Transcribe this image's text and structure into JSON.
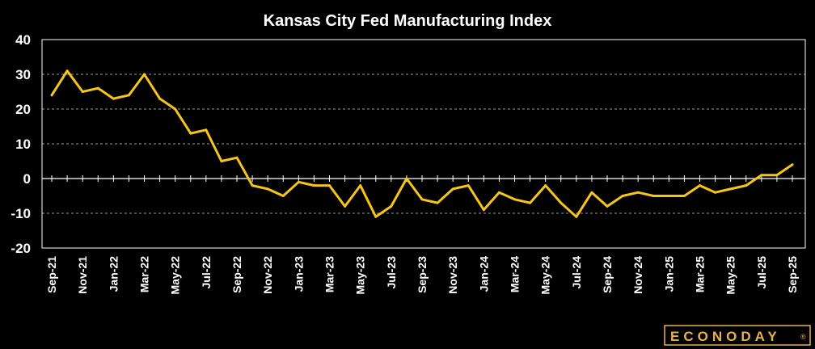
{
  "chart_data": {
    "type": "line",
    "title": "Kansas City Fed Manufacturing Index",
    "xlabel": "",
    "ylabel": "",
    "ylim": [
      -20,
      40
    ],
    "yticks": [
      40,
      30,
      20,
      10,
      0,
      -10,
      -20
    ],
    "grid": true,
    "legend": "none",
    "x": [
      "Sep-21",
      "Oct-21",
      "Nov-21",
      "Dec-21",
      "Jan-22",
      "Feb-22",
      "Mar-22",
      "Apr-22",
      "May-22",
      "Jun-22",
      "Jul-22",
      "Aug-22",
      "Sep-22",
      "Oct-22",
      "Nov-22",
      "Dec-22",
      "Jan-23",
      "Feb-23",
      "Mar-23",
      "Apr-23",
      "May-23",
      "Jun-23",
      "Jul-23",
      "Aug-23",
      "Sep-23",
      "Oct-23",
      "Nov-23",
      "Dec-23",
      "Jan-24",
      "Feb-24",
      "Mar-24",
      "Apr-24",
      "May-24",
      "Jun-24",
      "Jul-24",
      "Aug-24",
      "Sep-24",
      "Oct-24",
      "Nov-24",
      "Dec-24",
      "Jan-25",
      "Feb-25",
      "Mar-25",
      "Apr-25",
      "May-25",
      "Jun-25",
      "Jul-25",
      "Aug-25",
      "Sep-25"
    ],
    "x_tick_labels": [
      "Sep-21",
      "Nov-21",
      "Jan-22",
      "Mar-22",
      "May-22",
      "Jul-22",
      "Sep-22",
      "Nov-22",
      "Jan-23",
      "Mar-23",
      "May-23",
      "Jul-23",
      "Sep-23",
      "Nov-23",
      "Jan-24",
      "Mar-24",
      "May-24",
      "Jul-24",
      "Sep-24",
      "Nov-24",
      "Jan-25",
      "Mar-25",
      "May-25",
      "Jul-25",
      "Sep-25"
    ],
    "series": [
      {
        "values": [
          24,
          31,
          25,
          26,
          23,
          24,
          30,
          23,
          20,
          13,
          14,
          5,
          6,
          -2,
          -3,
          -5,
          -1,
          -2,
          -2,
          -8,
          -2,
          -11,
          -8,
          0,
          -6,
          -7,
          -3,
          -2,
          -9,
          -4,
          -6,
          -7,
          -2,
          -7,
          -11,
          -4,
          -8,
          -5,
          -4,
          -5,
          -5,
          -5,
          -2,
          -4,
          -3,
          -2,
          1,
          1,
          4
        ],
        "color": "#f5c518"
      }
    ],
    "colors": {
      "background": "#000000",
      "grid": "#9a9a9a",
      "axis": "#ffffff",
      "text": "#ffffff"
    }
  },
  "logo": {
    "text": "ECONODAY",
    "mark": "®",
    "color": "#e8b24a"
  }
}
